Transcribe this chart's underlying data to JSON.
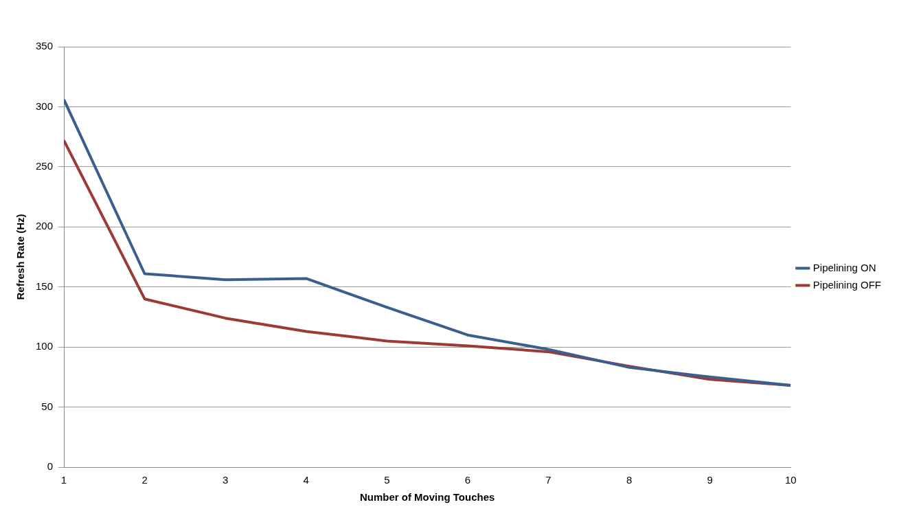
{
  "chart_data": {
    "type": "line",
    "xlabel": "Number of Moving Touches",
    "ylabel": "Refresh Rate (Hz)",
    "x": [
      1,
      2,
      3,
      4,
      5,
      6,
      7,
      8,
      9,
      10
    ],
    "series": [
      {
        "name": "Pipelining ON",
        "color": "#3a5f8f",
        "values": [
          306,
          161,
          156,
          157,
          133,
          110,
          98,
          83,
          75,
          68
        ]
      },
      {
        "name": "Pipelining OFF",
        "color": "#9b3b36",
        "values": [
          272,
          140,
          124,
          113,
          105,
          101,
          96,
          84,
          73,
          68
        ]
      }
    ],
    "xlim": [
      1,
      10
    ],
    "xticks": [
      1,
      2,
      3,
      4,
      5,
      6,
      7,
      8,
      9,
      10
    ],
    "ylim": [
      0,
      350
    ],
    "yticks": [
      0,
      50,
      100,
      150,
      200,
      250,
      300,
      350
    ],
    "grid": "y",
    "legend": "right",
    "marker": "none",
    "line_style": "solid"
  }
}
